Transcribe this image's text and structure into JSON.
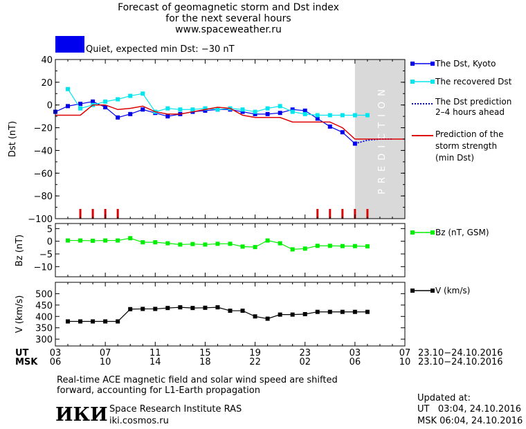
{
  "header": {
    "title_line1": "Forecast of geomagnetic storm and Dst index",
    "title_line2": "for the next several hours",
    "title_line3": "www.spaceweather.ru",
    "status_text": "Quiet, expected min Dst: −30 nT",
    "status_color": "#0000ee"
  },
  "legend": {
    "dst_kyoto": "The Dst, Kyoto",
    "dst_recovered": "The recovered Dst",
    "dst_prediction_1": "The Dst prediction",
    "dst_prediction_2": "2–4 hours ahead",
    "strength_1": "Prediction of the",
    "strength_2": "storm strength",
    "strength_3": "(min Dst)",
    "bz": "Bz (nT, GSM)",
    "v": "V (km/s)"
  },
  "colors": {
    "kyoto": "#0000ee",
    "recovered": "#00e5ee",
    "strength": "#dd0000",
    "bz": "#00ee00",
    "v": "#000000",
    "prediction_band": "#d9d9d9"
  },
  "axes": {
    "ut_label": "UT",
    "msk_label": "MSK",
    "ut_ticks": [
      "03",
      "07",
      "11",
      "15",
      "19",
      "23",
      "03",
      "07"
    ],
    "msk_ticks": [
      "06",
      "10",
      "14",
      "18",
      "22",
      "02",
      "06",
      "10"
    ],
    "ut_range": "23.10−24.10.2016",
    "msk_range": "23.10−24.10.2016",
    "prediction_label": "PREDICTION"
  },
  "footer": {
    "note_line1": "Real-time ACE magnetic field and solar wind speed are shifted",
    "note_line2": "forward, accounting for L1-Earth propagation",
    "logo_text": "ИКИ",
    "institute": "Space Research Institute RAS",
    "site": "iki.cosmos.ru",
    "updated_label": "Updated at:",
    "updated_ut": "UT   03:04, 24.10.2016",
    "updated_msk": "MSK 06:04, 24.10.2016"
  },
  "chart_data": [
    {
      "type": "line",
      "ylabel": "Dst (nT)",
      "ylim": [
        -100,
        40
      ],
      "yticks": [
        40,
        20,
        0,
        -20,
        -40,
        -60,
        -80,
        -100
      ],
      "xlim": [
        3,
        31
      ],
      "prediction_band": [
        27,
        31
      ],
      "series": [
        {
          "name": "The Dst, Kyoto",
          "x": [
            3,
            4,
            5,
            6,
            7,
            8,
            9,
            10,
            11,
            12,
            13,
            14,
            15,
            16,
            17,
            18,
            19,
            20,
            21,
            22,
            23,
            24,
            25,
            26,
            27
          ],
          "y": [
            -6,
            -1,
            1,
            3,
            -2,
            -11,
            -8,
            -4,
            -7,
            -10,
            -8,
            -6,
            -5,
            -4,
            -4,
            -6,
            -8,
            -8,
            -7,
            -4,
            -5,
            -12,
            -19,
            -24,
            -34
          ]
        },
        {
          "name": "The recovered Dst",
          "x": [
            4,
            5,
            6,
            7,
            8,
            9,
            10,
            11,
            12,
            13,
            14,
            15,
            16,
            17,
            18,
            19,
            20,
            21,
            22,
            23,
            24,
            25,
            26,
            27,
            28
          ],
          "y": [
            14,
            -3,
            0,
            3,
            5,
            8,
            10,
            -6,
            -3,
            -4,
            -4,
            -3,
            -4,
            -3,
            -4,
            -6,
            -3,
            -1,
            -6,
            -8,
            -9,
            -9,
            -9,
            -9,
            -9
          ]
        },
        {
          "name": "The Dst prediction 2–4 hours ahead",
          "x": [
            27,
            28,
            29,
            30
          ],
          "y": [
            -34,
            -31,
            -30,
            -30
          ]
        },
        {
          "name": "Prediction of the storm strength (min Dst)",
          "x": [
            3,
            5,
            6,
            7,
            8,
            9,
            10,
            11,
            12,
            13,
            14,
            15,
            16,
            17,
            18,
            19,
            20,
            21,
            22,
            23,
            24,
            25,
            26,
            27,
            31
          ],
          "y": [
            -9,
            -9,
            0,
            0,
            -4,
            -3,
            -1,
            -6,
            -8,
            -8,
            -6,
            -4,
            -2,
            -3,
            -9,
            -11,
            -11,
            -11,
            -15,
            -15,
            -15,
            -15,
            -20,
            -30,
            -30
          ]
        }
      ],
      "storm_markers_x": [
        5,
        6,
        7,
        8,
        24,
        25,
        26,
        27,
        28
      ]
    },
    {
      "type": "line",
      "ylabel": "Bz (nT)",
      "ylim": [
        -14,
        7
      ],
      "yticks": [
        5,
        0,
        -5,
        -10
      ],
      "xlim": [
        3,
        31
      ],
      "series": [
        {
          "name": "Bz (nT, GSM)",
          "x": [
            4,
            5,
            6,
            7,
            8,
            9,
            10,
            11,
            12,
            13,
            14,
            15,
            16,
            17,
            18,
            19,
            20,
            21,
            22,
            23,
            24,
            25,
            26,
            27,
            28
          ],
          "y": [
            0.3,
            0.3,
            0.2,
            0.3,
            0.3,
            1.2,
            -0.4,
            -0.4,
            -0.8,
            -1.3,
            -1.1,
            -1.3,
            -1.0,
            -1.0,
            -2.1,
            -2.3,
            0.3,
            -0.8,
            -3.2,
            -2.9,
            -1.8,
            -1.8,
            -1.9,
            -1.9,
            -2.0
          ]
        }
      ]
    },
    {
      "type": "line",
      "ylabel": "V (km/s)",
      "ylim": [
        270,
        550
      ],
      "yticks": [
        500,
        450,
        400,
        350,
        300
      ],
      "xlim": [
        3,
        31
      ],
      "series": [
        {
          "name": "V (km/s)",
          "x": [
            4,
            5,
            6,
            7,
            8,
            9,
            10,
            11,
            12,
            13,
            14,
            15,
            16,
            17,
            18,
            19,
            20,
            21,
            22,
            23,
            24,
            25,
            26,
            27,
            28
          ],
          "y": [
            378,
            378,
            378,
            378,
            378,
            432,
            433,
            433,
            437,
            440,
            437,
            438,
            440,
            425,
            425,
            400,
            390,
            408,
            408,
            410,
            420,
            420,
            420,
            420,
            420
          ]
        }
      ]
    }
  ]
}
